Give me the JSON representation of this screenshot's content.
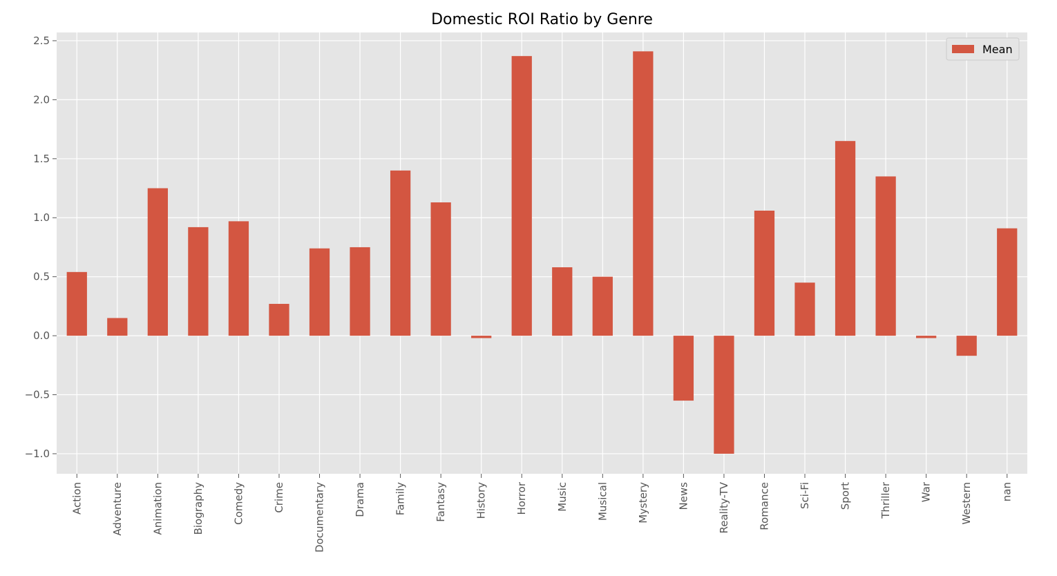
{
  "chart_data": {
    "type": "bar",
    "title": "Domestic ROI Ratio by Genre",
    "xlabel": "",
    "ylabel": "",
    "categories": [
      "Action",
      "Adventure",
      "Animation",
      "Biography",
      "Comedy",
      "Crime",
      "Documentary",
      "Drama",
      "Family",
      "Fantasy",
      "History",
      "Horror",
      "Music",
      "Musical",
      "Mystery",
      "News",
      "Reality-TV",
      "Romance",
      "Sci-Fi",
      "Sport",
      "Thriller",
      "War",
      "Western",
      "nan"
    ],
    "series": [
      {
        "name": "Mean",
        "color": "#d35641",
        "values": [
          0.54,
          0.15,
          1.25,
          0.92,
          0.97,
          0.27,
          0.74,
          0.75,
          1.4,
          1.13,
          -0.02,
          2.37,
          0.58,
          0.5,
          2.41,
          -0.55,
          -1.0,
          1.06,
          0.45,
          1.65,
          1.35,
          -0.02,
          -0.17,
          0.91
        ]
      }
    ],
    "ylim": [
      -1.17,
      2.57
    ],
    "yticks": [
      -1.0,
      -0.5,
      0.0,
      0.5,
      1.0,
      1.5,
      2.0,
      2.5
    ],
    "ytick_labels": [
      "−1.0",
      "−0.5",
      "0.0",
      "0.5",
      "1.0",
      "1.5",
      "2.0",
      "2.5"
    ],
    "grid": true,
    "legend_position": "top-right",
    "colors": {
      "plot_background": "#e5e5e5",
      "grid": "#ffffff",
      "bar": "#d35641"
    }
  }
}
